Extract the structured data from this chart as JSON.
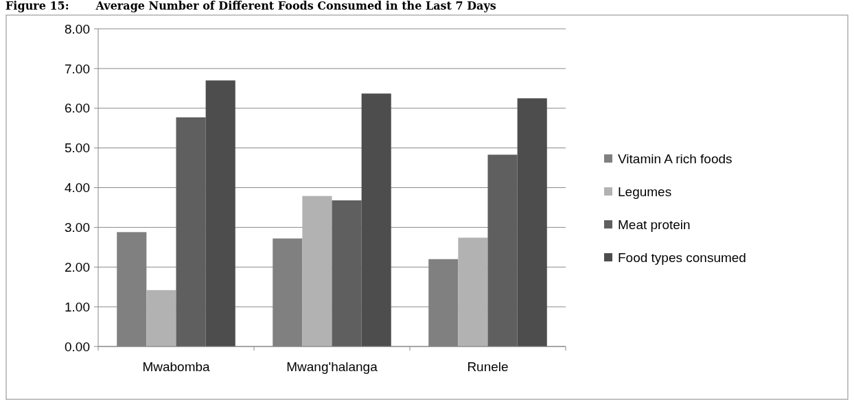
{
  "chart_data": {
    "type": "bar",
    "title": "Figure 15:       Average Number of Different Foods Consumed in the Last 7 Days",
    "categories": [
      "Mwabomba",
      "Mwang'halanga",
      "Runele"
    ],
    "series": [
      {
        "name": "Vitamin A rich foods",
        "color": "#808080",
        "values": [
          2.88,
          2.72,
          2.2
        ]
      },
      {
        "name": "Legumes",
        "color": "#b2b2b2",
        "values": [
          1.42,
          3.79,
          2.74
        ]
      },
      {
        "name": "Meat protein",
        "color": "#5f5f5f",
        "values": [
          5.77,
          3.68,
          4.83
        ]
      },
      {
        "name": "Food types consumed",
        "color": "#4d4d4d",
        "values": [
          6.7,
          6.37,
          6.25
        ]
      }
    ],
    "ylim": [
      0,
      8
    ],
    "yticks": [
      {
        "value": 0,
        "label": "0.00"
      },
      {
        "value": 1,
        "label": "1.00"
      },
      {
        "value": 2,
        "label": "2.00"
      },
      {
        "value": 3,
        "label": "3.00"
      },
      {
        "value": 4,
        "label": "4.00"
      },
      {
        "value": 5,
        "label": "5.00"
      },
      {
        "value": 6,
        "label": "6.00"
      },
      {
        "value": 7,
        "label": "7.00"
      },
      {
        "value": 8,
        "label": "8.00"
      }
    ],
    "grid": "y",
    "legend": "right"
  }
}
